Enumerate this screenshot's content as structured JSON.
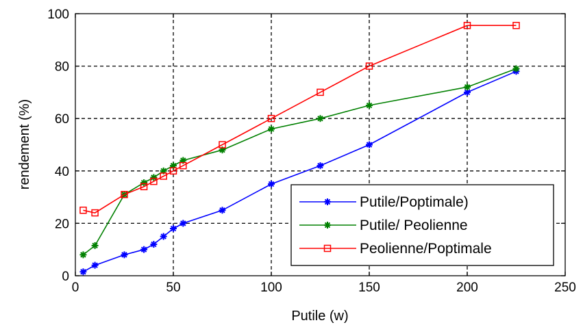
{
  "chart_data": {
    "type": "line",
    "title": "",
    "xlabel": "Putile (w)",
    "ylabel": "rendement (%)",
    "xlim": [
      0,
      250
    ],
    "ylim": [
      0,
      100
    ],
    "xticks": [
      0,
      50,
      100,
      150,
      200,
      250
    ],
    "yticks": [
      0,
      20,
      40,
      60,
      80,
      100
    ],
    "grid": true,
    "legend_position": "bottom-right",
    "series": [
      {
        "name": "Putile/Poptimale)",
        "color": "#0000ff",
        "marker": "star",
        "x": [
          4,
          10,
          25,
          35,
          40,
          45,
          50,
          55,
          75,
          100,
          125,
          150,
          200,
          225
        ],
        "y": [
          1.5,
          4,
          8,
          10,
          12,
          15,
          18,
          20,
          25,
          35,
          42,
          50,
          70,
          78
        ]
      },
      {
        "name": "Putile/ Peolienne",
        "color": "#008000",
        "marker": "star",
        "x": [
          4,
          10,
          25,
          35,
          40,
          45,
          50,
          55,
          75,
          100,
          125,
          150,
          200,
          225
        ],
        "y": [
          8,
          11.5,
          31,
          35.5,
          37.5,
          40,
          42,
          44,
          48,
          56,
          60,
          65,
          72,
          79
        ]
      },
      {
        "name": "Peolienne/Poptimale",
        "color": "#ff0000",
        "marker": "square",
        "x": [
          4,
          10,
          25,
          35,
          40,
          45,
          50,
          55,
          75,
          100,
          125,
          150,
          200,
          225
        ],
        "y": [
          25,
          24,
          31,
          34,
          36,
          38,
          40,
          42,
          50,
          60,
          70,
          80,
          95.5,
          95.5
        ]
      }
    ]
  }
}
